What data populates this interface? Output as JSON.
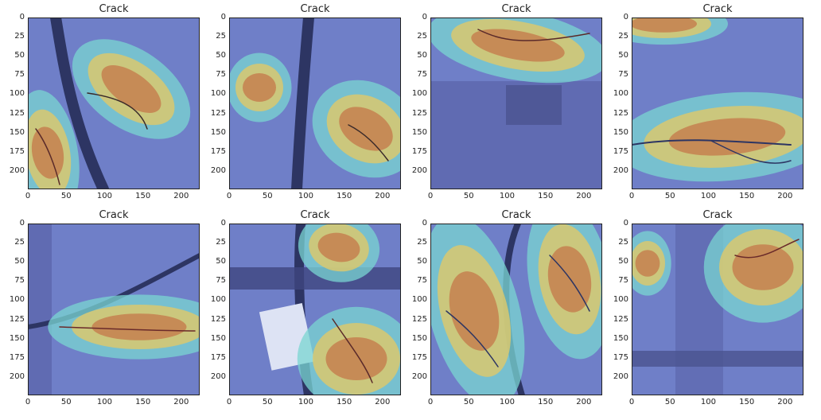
{
  "figure": {
    "panels": [
      {
        "title": "Crack",
        "variant": "a"
      },
      {
        "title": "Crack",
        "variant": "b"
      },
      {
        "title": "Crack",
        "variant": "c"
      },
      {
        "title": "Crack",
        "variant": "d"
      },
      {
        "title": "Crack",
        "variant": "e"
      },
      {
        "title": "Crack",
        "variant": "f"
      },
      {
        "title": "Crack",
        "variant": "g"
      },
      {
        "title": "Crack",
        "variant": "h"
      }
    ],
    "x_ticks": [
      "0",
      "50",
      "100",
      "150",
      "200"
    ],
    "y_ticks": [
      "0",
      "25",
      "50",
      "75",
      "100",
      "125",
      "150",
      "175",
      "200"
    ],
    "colors": {
      "base": "#6f7fc8",
      "dark": "#2d3563",
      "cyan": "#79d6d2",
      "yellow": "#d9c86f",
      "orange": "#c6804f"
    }
  }
}
